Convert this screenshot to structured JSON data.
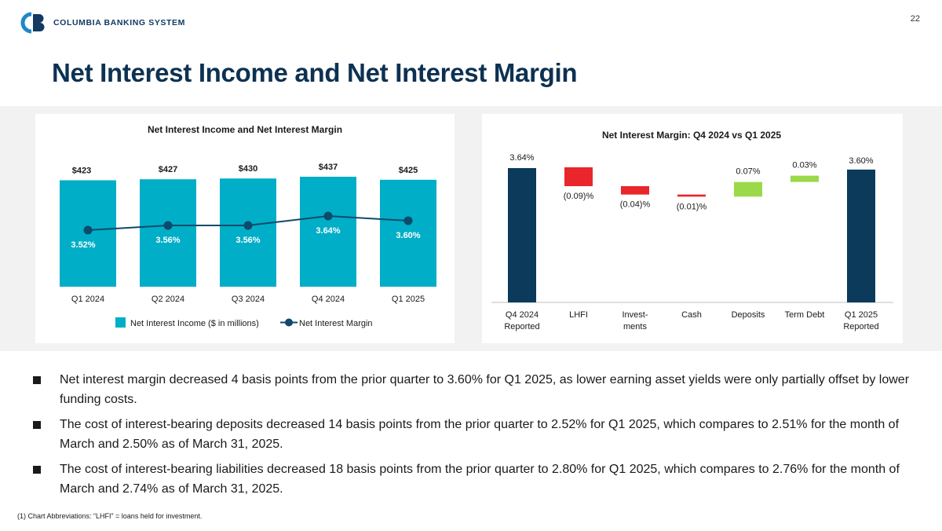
{
  "header": {
    "brand": "COLUMBIA BANKING SYSTEM",
    "page_number": "22",
    "title": "Net Interest Income and Net Interest Margin"
  },
  "colors": {
    "teal": "#00aec7",
    "navy": "#0d4a6b",
    "dark_blue": "#0b3a5a",
    "red": "#e8262b",
    "green": "#9bd94a"
  },
  "chart_data": [
    {
      "type": "bar",
      "title": "Net Interest Income and Net Interest Margin",
      "categories": [
        "Q1 2024",
        "Q2 2024",
        "Q3 2024",
        "Q4 2024",
        "Q1 2025"
      ],
      "series": [
        {
          "name": "Net Interest Income ($ in millions)",
          "kind": "bar",
          "values": [
            423,
            427,
            430,
            437,
            425
          ],
          "labels": [
            "$423",
            "$427",
            "$430",
            "$437",
            "$425"
          ]
        },
        {
          "name": "Net Interest Margin",
          "kind": "line",
          "values": [
            3.52,
            3.56,
            3.56,
            3.64,
            3.6
          ],
          "labels": [
            "3.52%",
            "3.56%",
            "3.56%",
            "3.64%",
            "3.60%"
          ]
        }
      ],
      "legend": [
        "Net Interest Income ($ in millions)",
        "Net Interest Margin"
      ],
      "legend_position": "bottom"
    },
    {
      "type": "waterfall",
      "title": "Net Interest Margin: Q4 2024 vs Q1 2025",
      "categories": [
        [
          "Q4 2024",
          "Reported"
        ],
        [
          "LHFI",
          ""
        ],
        [
          "Invest-",
          "ments"
        ],
        [
          "Cash",
          ""
        ],
        [
          "Deposits",
          ""
        ],
        [
          "Term Debt",
          ""
        ],
        [
          "Q1 2025",
          "Reported"
        ]
      ],
      "steps": [
        {
          "kind": "total",
          "value": 3.64,
          "label": "3.64%"
        },
        {
          "kind": "delta",
          "value": -0.09,
          "label": "(0.09)%"
        },
        {
          "kind": "delta",
          "value": -0.04,
          "label": "(0.04)%"
        },
        {
          "kind": "delta",
          "value": -0.01,
          "label": "(0.01)%"
        },
        {
          "kind": "delta",
          "value": 0.07,
          "label": "0.07%"
        },
        {
          "kind": "delta",
          "value": 0.03,
          "label": "0.03%"
        },
        {
          "kind": "total",
          "value": 3.6,
          "label": "3.60%"
        }
      ]
    }
  ],
  "bullets": [
    "Net interest margin decreased 4 basis points from the prior quarter to 3.60% for Q1 2025, as lower earning asset yields were only partially offset by lower funding costs.",
    "The cost of interest-bearing deposits decreased 14 basis points from the prior quarter to 2.52% for Q1 2025, which compares to 2.51% for the month of March and 2.50% as of March 31, 2025.",
    "The cost of interest-bearing liabilities decreased 18 basis points from the prior quarter to 2.80% for Q1 2025, which compares to 2.76% for the month of March and 2.74% as of March 31, 2025."
  ],
  "footnote": "(1)  Chart Abbreviations: “LHFI” = loans held for investment."
}
